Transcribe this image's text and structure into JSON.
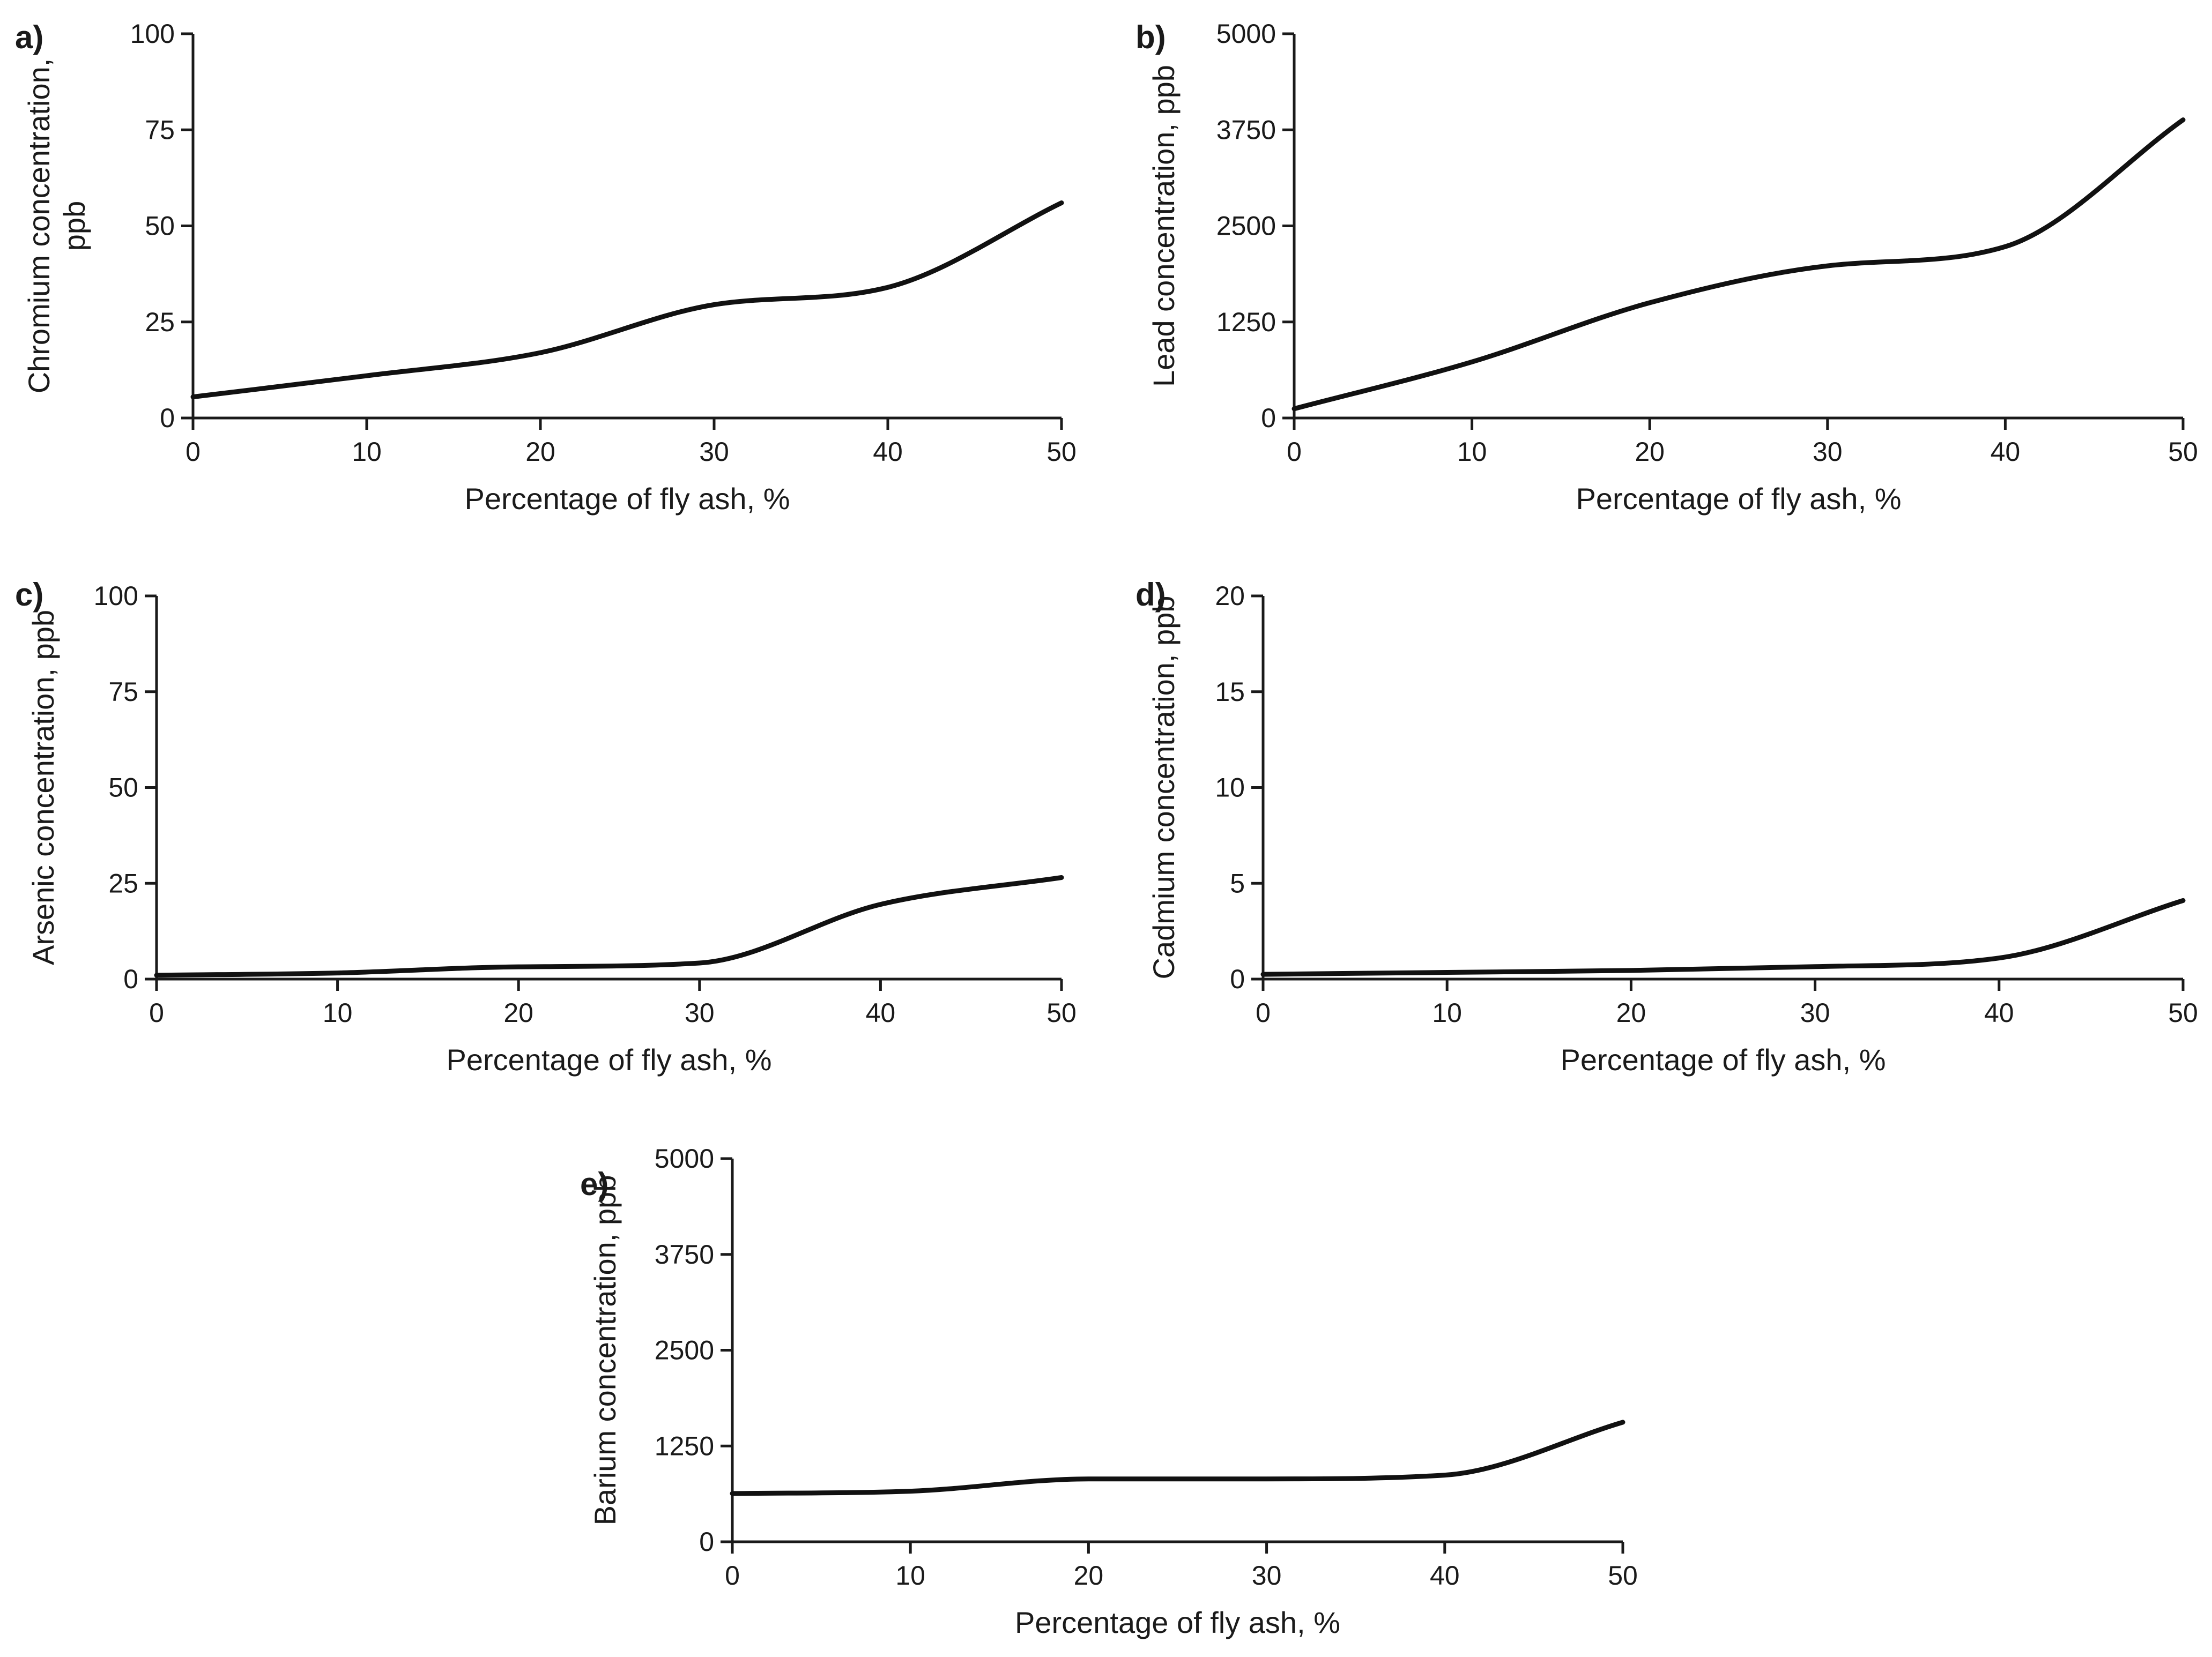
{
  "chart_data": [
    {
      "id": "a",
      "type": "line",
      "panel_label": "a)",
      "title": "",
      "xlabel": "Percentage of fly ash, %",
      "ylabel": "Chromium concentration, ppb",
      "ylabel_lines": [
        "Chromium concentration,",
        "ppb"
      ],
      "xlim": [
        0,
        50
      ],
      "ylim": [
        0,
        100
      ],
      "xticks": [
        0,
        10,
        20,
        30,
        40,
        50
      ],
      "yticks": [
        0,
        25,
        50,
        75,
        100
      ],
      "xtick_labels": [
        "0",
        "10",
        "20",
        "30",
        "40",
        "50"
      ],
      "ytick_labels": [
        "0",
        "25",
        "50",
        "75",
        "100"
      ],
      "grid": false,
      "series": [
        {
          "name": "Chromium",
          "x": [
            0,
            10,
            20,
            30,
            40,
            50
          ],
          "y": [
            5.5,
            11,
            17,
            29.5,
            34,
            56
          ]
        }
      ]
    },
    {
      "id": "b",
      "type": "line",
      "panel_label": "b)",
      "title": "",
      "xlabel": "Percentage of fly ash, %",
      "ylabel": "Lead concentration, ppb",
      "ylabel_lines": [
        "Lead concentration, ppb"
      ],
      "xlim": [
        0,
        50
      ],
      "ylim": [
        0,
        5000
      ],
      "xticks": [
        0,
        10,
        20,
        30,
        40,
        50
      ],
      "yticks": [
        0,
        1250,
        2500,
        3750,
        5000
      ],
      "xtick_labels": [
        "0",
        "10",
        "20",
        "30",
        "40",
        "50"
      ],
      "ytick_labels": [
        "0",
        "1250",
        "2500",
        "3750",
        "5000"
      ],
      "grid": false,
      "series": [
        {
          "name": "Lead",
          "x": [
            0,
            10,
            20,
            30,
            40,
            50
          ],
          "y": [
            120,
            730,
            1500,
            1980,
            2230,
            3880
          ]
        }
      ]
    },
    {
      "id": "c",
      "type": "line",
      "panel_label": "c)",
      "title": "",
      "xlabel": "Percentage of fly ash, %",
      "ylabel": "Arsenic concentration, ppb",
      "ylabel_lines": [
        "Arsenic concentration, ppb"
      ],
      "xlim": [
        0,
        50
      ],
      "ylim": [
        0,
        100
      ],
      "xticks": [
        0,
        10,
        20,
        30,
        40,
        50
      ],
      "yticks": [
        0,
        25,
        50,
        75,
        100
      ],
      "xtick_labels": [
        "0",
        "10",
        "20",
        "30",
        "40",
        "50"
      ],
      "ytick_labels": [
        "0",
        "25",
        "50",
        "75",
        "100"
      ],
      "grid": false,
      "series": [
        {
          "name": "Arsenic",
          "x": [
            0,
            10,
            20,
            30,
            40,
            50
          ],
          "y": [
            1,
            1.6,
            3.2,
            4.2,
            19.5,
            26.5
          ]
        }
      ]
    },
    {
      "id": "d",
      "type": "line",
      "panel_label": "d)",
      "title": "",
      "xlabel": "Percentage of fly ash, %",
      "ylabel": "Cadmium concentration, ppb",
      "ylabel_lines": [
        "Cadmium concentration, ppb"
      ],
      "xlim": [
        0,
        50
      ],
      "ylim": [
        0,
        20
      ],
      "xticks": [
        0,
        10,
        20,
        30,
        40,
        50
      ],
      "yticks": [
        0,
        5,
        10,
        15,
        20
      ],
      "xtick_labels": [
        "0",
        "10",
        "20",
        "30",
        "40",
        "50"
      ],
      "ytick_labels": [
        "0",
        "5",
        "10",
        "15",
        "20"
      ],
      "grid": false,
      "series": [
        {
          "name": "Cadmium",
          "x": [
            0,
            10,
            20,
            30,
            40,
            50
          ],
          "y": [
            0.25,
            0.35,
            0.45,
            0.65,
            1.1,
            4.1
          ]
        }
      ]
    },
    {
      "id": "e",
      "type": "line",
      "panel_label": "e)",
      "title": "",
      "xlabel": "Percentage of fly ash, %",
      "ylabel": "Barium concentration, ppb",
      "ylabel_lines": [
        "Barium concentration, ppb"
      ],
      "xlim": [
        0,
        50
      ],
      "ylim": [
        0,
        5000
      ],
      "xticks": [
        0,
        10,
        20,
        30,
        40,
        50
      ],
      "yticks": [
        0,
        1250,
        2500,
        3750,
        5000
      ],
      "xtick_labels": [
        "0",
        "10",
        "20",
        "30",
        "40",
        "50"
      ],
      "ytick_labels": [
        "0",
        "1250",
        "2500",
        "3750",
        "5000"
      ],
      "grid": false,
      "series": [
        {
          "name": "Barium",
          "x": [
            0,
            10,
            20,
            30,
            40,
            50
          ],
          "y": [
            630,
            660,
            820,
            820,
            870,
            1560
          ]
        }
      ]
    }
  ]
}
